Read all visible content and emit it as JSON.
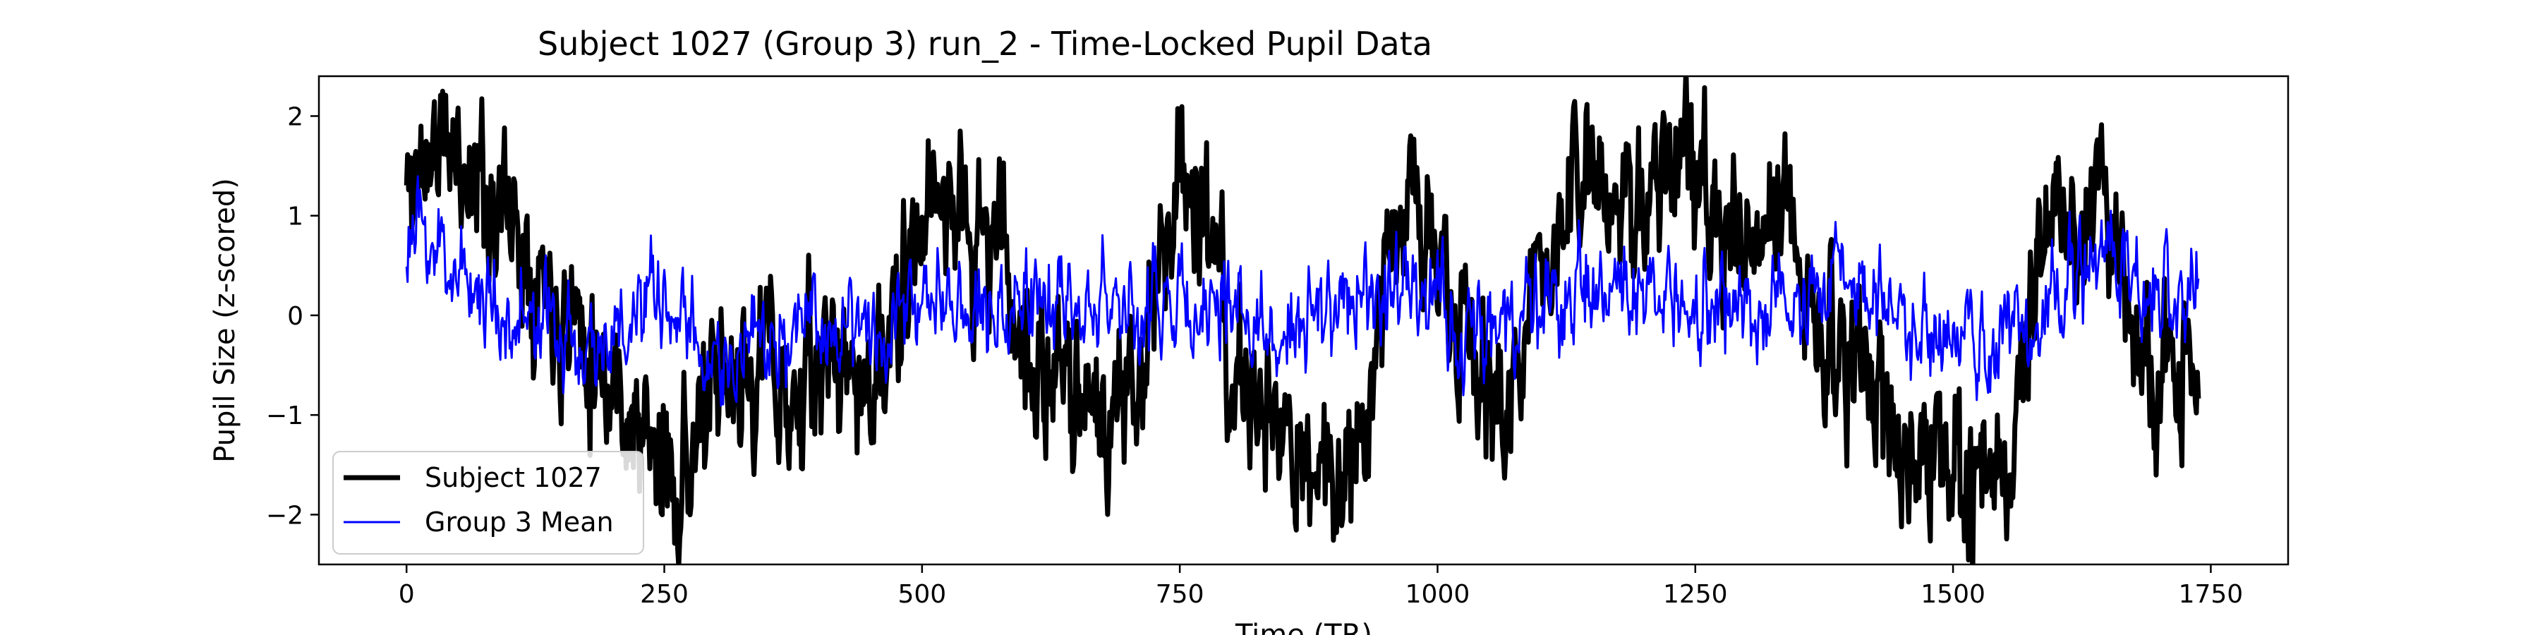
{
  "chart_data": {
    "type": "line",
    "title": "Subject 1027 (Group 3) run_2 - Time-Locked Pupil Data",
    "xlabel": "Time (TR)",
    "ylabel": "Pupil Size (z-scored)",
    "xlim": [
      -85,
      1825
    ],
    "ylim": [
      -2.5,
      2.4
    ],
    "x_ticks": [
      0,
      250,
      500,
      750,
      1000,
      1250,
      1500,
      1750
    ],
    "x_tick_labels": [
      "0",
      "250",
      "500",
      "750",
      "1000",
      "1250",
      "1500",
      "1750"
    ],
    "y_ticks": [
      -2,
      -1,
      0,
      1,
      2
    ],
    "y_tick_labels": [
      "−2",
      "−1",
      "0",
      "1",
      "2"
    ],
    "grid": false,
    "legend_position": "lower-left",
    "n_points": 1739,
    "series": [
      {
        "name": "Subject 1027",
        "color": "#000000",
        "line_width": "thick",
        "noise": 0.35,
        "seed": 11,
        "x": [
          0,
          25,
          50,
          75,
          100,
          125,
          150,
          175,
          200,
          225,
          250,
          275,
          300,
          325,
          350,
          375,
          400,
          425,
          450,
          475,
          500,
          525,
          550,
          575,
          600,
          625,
          650,
          675,
          700,
          725,
          750,
          775,
          800,
          825,
          850,
          875,
          900,
          925,
          950,
          975,
          1000,
          1025,
          1050,
          1075,
          1100,
          1125,
          1150,
          1175,
          1200,
          1225,
          1250,
          1275,
          1300,
          1325,
          1350,
          1375,
          1400,
          1425,
          1450,
          1475,
          1500,
          1525,
          1550,
          1575,
          1600,
          1625,
          1650,
          1675,
          1700,
          1725,
          1738
        ],
        "y": [
          1.2,
          1.7,
          1.6,
          1.3,
          1.0,
          0.6,
          0.2,
          -0.1,
          -0.6,
          -1.2,
          -1.6,
          -1.4,
          -0.9,
          -0.7,
          -0.3,
          -1.0,
          -0.5,
          -0.4,
          -0.8,
          -0.2,
          0.9,
          1.4,
          0.6,
          0.9,
          -0.4,
          -0.9,
          -0.4,
          -1.2,
          -1.0,
          0.2,
          1.7,
          0.8,
          -0.6,
          -0.9,
          -1.3,
          -1.5,
          -1.6,
          -1.2,
          0.6,
          1.4,
          0.4,
          -0.4,
          -0.7,
          -0.8,
          0.5,
          1.1,
          1.3,
          0.9,
          1.4,
          1.6,
          1.3,
          0.7,
          0.5,
          0.9,
          0.7,
          -0.1,
          -0.6,
          -0.9,
          -1.1,
          -1.4,
          -1.6,
          -1.9,
          -1.4,
          -0.3,
          1.0,
          0.7,
          1.2,
          -0.2,
          -0.8,
          -0.6,
          -0.9
        ]
      },
      {
        "name": "Group 3 Mean",
        "color": "#0000ff",
        "line_width": "thin",
        "noise": 0.22,
        "seed": 23,
        "x": [
          0,
          25,
          50,
          75,
          100,
          125,
          150,
          175,
          200,
          225,
          250,
          275,
          300,
          325,
          350,
          375,
          400,
          425,
          450,
          475,
          500,
          525,
          550,
          575,
          600,
          625,
          650,
          675,
          700,
          725,
          750,
          775,
          800,
          825,
          850,
          875,
          900,
          925,
          950,
          975,
          1000,
          1025,
          1050,
          1075,
          1100,
          1125,
          1150,
          1175,
          1200,
          1225,
          1250,
          1275,
          1300,
          1325,
          1350,
          1375,
          1400,
          1425,
          1450,
          1475,
          1500,
          1525,
          1550,
          1575,
          1600,
          1625,
          1650,
          1675,
          1700,
          1725,
          1738
        ],
        "y": [
          0.8,
          0.7,
          0.5,
          0.2,
          0.0,
          -0.1,
          -0.2,
          -0.3,
          -0.2,
          -0.1,
          0.2,
          -0.3,
          -0.4,
          -0.5,
          -0.3,
          -0.2,
          -0.1,
          0.0,
          -0.1,
          0.1,
          0.1,
          0.4,
          0.2,
          0.0,
          0.1,
          0.2,
          0.1,
          0.2,
          0.1,
          0.0,
          0.1,
          0.2,
          0.0,
          -0.1,
          -0.2,
          0.0,
          0.0,
          0.1,
          0.4,
          0.2,
          0.1,
          -0.1,
          0.0,
          -0.2,
          0.1,
          0.2,
          0.3,
          0.1,
          0.2,
          0.1,
          0.0,
          0.1,
          0.0,
          -0.1,
          0.1,
          0.2,
          0.3,
          0.1,
          0.0,
          -0.2,
          -0.3,
          -0.2,
          -0.3,
          -0.1,
          0.1,
          0.4,
          0.6,
          0.4,
          0.2,
          0.1,
          0.3
        ]
      }
    ]
  }
}
